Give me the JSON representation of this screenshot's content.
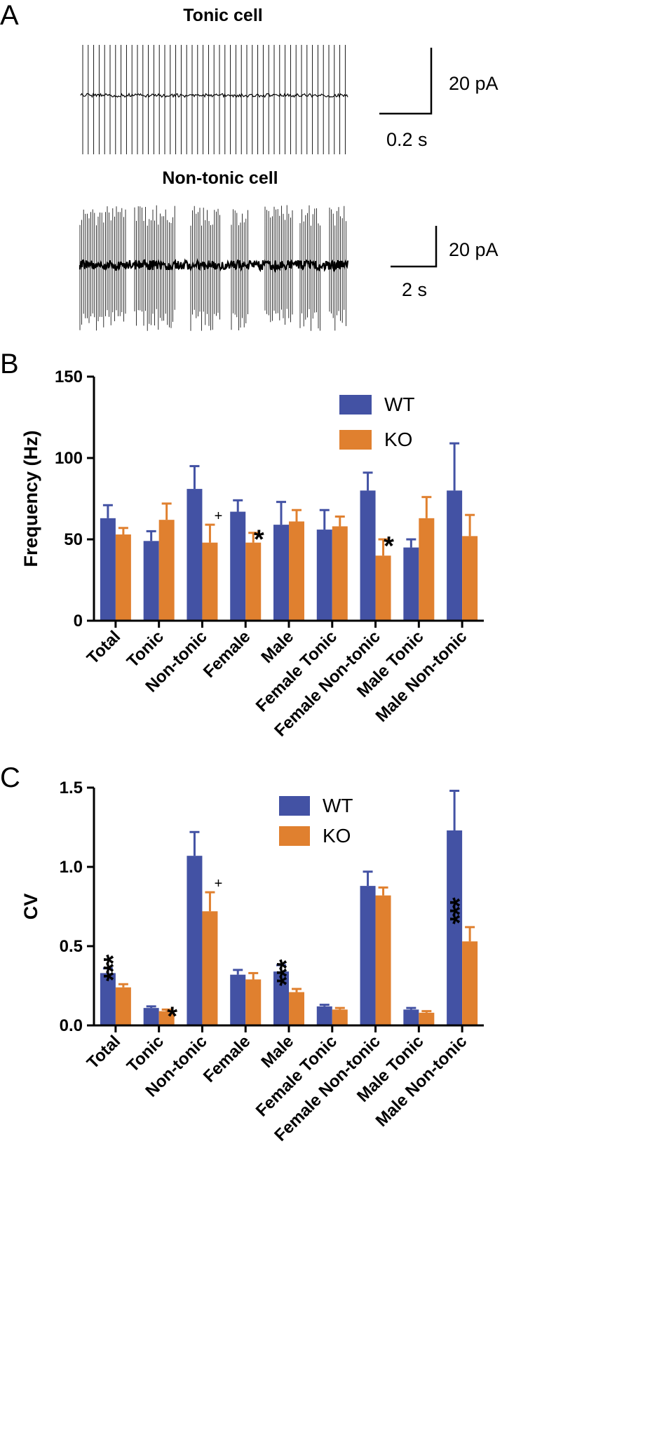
{
  "panel_a": {
    "letter": "A",
    "tonic_title": "Tonic cell",
    "nontonic_title": "Non-tonic cell",
    "tonic_scale_y": "20 pA",
    "tonic_scale_x": "0.2 s",
    "nontonic_scale_y": "20 pA",
    "nontonic_scale_x": "2 s"
  },
  "panel_b_letter": "B",
  "panel_c_letter": "C",
  "colors": {
    "wt": "#4352A4",
    "ko": "#E0802F"
  },
  "chart_data": [
    {
      "id": "B",
      "type": "bar",
      "ylabel": "Frequency (Hz)",
      "ylim": [
        0,
        150
      ],
      "yticks": [
        0,
        50,
        100,
        150
      ],
      "ytick_labels": [
        "0",
        "50",
        "100",
        "150"
      ],
      "categories": [
        "Total",
        "Tonic",
        "Non-tonic",
        "Female",
        "Male",
        "Female Tonic",
        "Female Non-tonic",
        "Male Tonic",
        "Male Non-tonic"
      ],
      "series": [
        {
          "name": "WT",
          "values": [
            63,
            49,
            81,
            67,
            59,
            56,
            80,
            45,
            80
          ],
          "errors": [
            8,
            6,
            14,
            7,
            14,
            12,
            11,
            5,
            29
          ]
        },
        {
          "name": "KO",
          "values": [
            53,
            62,
            48,
            48,
            61,
            58,
            40,
            63,
            52
          ],
          "errors": [
            4,
            10,
            11,
            6,
            7,
            6,
            10,
            13,
            13
          ]
        }
      ],
      "legend": [
        "WT",
        "KO"
      ],
      "annotations": [
        {
          "category": "Non-tonic",
          "text": "+"
        },
        {
          "category": "Female",
          "text": "*"
        },
        {
          "category": "Female Non-tonic",
          "text": "*"
        }
      ]
    },
    {
      "id": "C",
      "type": "bar",
      "ylabel": "CV",
      "ylim": [
        0,
        1.5
      ],
      "yticks": [
        0,
        0.5,
        1.0,
        1.5
      ],
      "ytick_labels": [
        "0.0",
        "0.5",
        "1.0",
        "1.5"
      ],
      "categories": [
        "Total",
        "Tonic",
        "Non-tonic",
        "Female",
        "Male",
        "Female Tonic",
        "Female Non-tonic",
        "Male Tonic",
        "Male Non-tonic"
      ],
      "series": [
        {
          "name": "WT",
          "values": [
            0.33,
            0.11,
            1.07,
            0.32,
            0.34,
            0.12,
            0.88,
            0.1,
            1.23
          ],
          "errors": [
            0.03,
            0.01,
            0.15,
            0.03,
            0.04,
            0.01,
            0.09,
            0.01,
            0.25
          ]
        },
        {
          "name": "KO",
          "values": [
            0.24,
            0.09,
            0.72,
            0.29,
            0.21,
            0.1,
            0.82,
            0.08,
            0.53
          ],
          "errors": [
            0.02,
            0.01,
            0.12,
            0.04,
            0.02,
            0.01,
            0.05,
            0.01,
            0.09
          ]
        }
      ],
      "legend": [
        "WT",
        "KO"
      ],
      "annotations": [
        {
          "category": "Total",
          "text": "***"
        },
        {
          "category": "Tonic",
          "text": "*"
        },
        {
          "category": "Non-tonic",
          "text": "+"
        },
        {
          "category": "Male",
          "text": "***"
        },
        {
          "category": "Male Non-tonic",
          "text": "***"
        }
      ]
    }
  ]
}
